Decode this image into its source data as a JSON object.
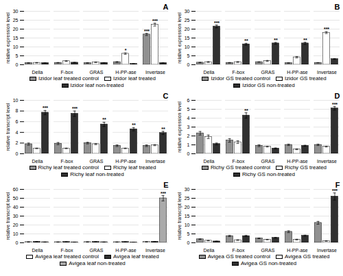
{
  "chart_data": [
    {
      "type": "bar",
      "title": "A",
      "ylabel": "relative expression level",
      "categories": [
        "Della",
        "F-box",
        "GRAS",
        "H-PP-ase",
        "Invertase"
      ],
      "ylim": [
        0,
        30
      ],
      "yticks": [
        0,
        5,
        10,
        15,
        20,
        25,
        30
      ],
      "grid": true,
      "legend": "bottom",
      "series": [
        {
          "name": "Izidor leaf treated control",
          "color": "#909090",
          "values": [
            1.0,
            1.1,
            1.0,
            1.5,
            17.0
          ],
          "errors": [
            0.1,
            0.1,
            0.1,
            0.2,
            0.6
          ],
          "asterisks": [
            null,
            null,
            null,
            null,
            "***"
          ]
        },
        {
          "name": "Izidor leaf treated",
          "color": "#ffffff",
          "values": [
            1.1,
            2.0,
            1.4,
            6.2,
            22.5
          ],
          "errors": [
            0.1,
            0.2,
            0.15,
            0.4,
            0.8
          ],
          "asterisks": [
            null,
            null,
            null,
            "*",
            "***"
          ]
        },
        {
          "name": "Izidor leaf non-treated",
          "color": "#303030",
          "values": [
            1.0,
            1.2,
            1.1,
            0.5,
            1.0
          ],
          "errors": [
            0.05,
            0.1,
            0.05,
            0.05,
            0.1
          ],
          "asterisks": [
            null,
            null,
            null,
            null,
            null
          ]
        }
      ]
    },
    {
      "type": "bar",
      "title": "B",
      "ylabel": "relative expression level",
      "categories": [
        "Della",
        "F-box",
        "GRAS",
        "H-PP-ase",
        "Invertase"
      ],
      "ylim": [
        0,
        30
      ],
      "yticks": [
        0,
        5,
        10,
        15,
        20,
        25,
        30
      ],
      "grid": true,
      "legend": "bottom",
      "series": [
        {
          "name": "Izidor GS treated control",
          "color": "#909090",
          "values": [
            1.2,
            1.1,
            1.5,
            1.0,
            1.1
          ],
          "errors": [
            0.1,
            0.1,
            0.1,
            0.05,
            0.05
          ],
          "asterisks": [
            null,
            null,
            null,
            null,
            null
          ]
        },
        {
          "name": "Izidor GS treated",
          "color": "#ffffff",
          "values": [
            1.5,
            1.5,
            2.1,
            4.2,
            18.0
          ],
          "errors": [
            0.2,
            0.2,
            0.3,
            0.4,
            0.5
          ],
          "asterisks": [
            null,
            null,
            null,
            null,
            "***"
          ]
        },
        {
          "name": "Izidor GS non-treated",
          "color": "#303030",
          "values": [
            21.5,
            11.5,
            12.0,
            12.0,
            3.2
          ],
          "errors": [
            0.8,
            0.5,
            0.5,
            0.6,
            0.2
          ],
          "asterisks": [
            "***",
            "**",
            "**",
            "**",
            null
          ]
        }
      ]
    },
    {
      "type": "bar",
      "title": "C",
      "ylabel": "relative transcript level",
      "categories": [
        "Della",
        "F-box",
        "GRAS",
        "H-PP-ase",
        "Invertase"
      ],
      "ylim": [
        0,
        10
      ],
      "yticks": [
        0,
        2,
        4,
        6,
        8,
        10
      ],
      "grid": true,
      "legend": "bottom",
      "series": [
        {
          "name": "Richy leaf treated control",
          "color": "#909090",
          "values": [
            1.8,
            1.9,
            2.0,
            1.5,
            1.5
          ],
          "errors": [
            0.2,
            0.2,
            0.15,
            0.15,
            0.15
          ],
          "asterisks": [
            null,
            null,
            null,
            null,
            null
          ]
        },
        {
          "name": "Richy leaf treated",
          "color": "#ffffff",
          "values": [
            1.0,
            1.0,
            1.8,
            1.0,
            1.6
          ],
          "errors": [
            0.05,
            0.05,
            0.1,
            0.05,
            0.1
          ],
          "asterisks": [
            null,
            null,
            null,
            null,
            null
          ]
        },
        {
          "name": "Richy leaf non-treated",
          "color": "#303030",
          "values": [
            7.7,
            7.5,
            5.5,
            4.6,
            3.9
          ],
          "errors": [
            0.4,
            0.5,
            0.4,
            0.3,
            0.3
          ],
          "asterisks": [
            "***",
            "***",
            "**",
            "**",
            "**"
          ]
        }
      ]
    },
    {
      "type": "bar",
      "title": "D",
      "ylabel": "relative expression level",
      "categories": [
        "Della",
        "F-box",
        "GRAS",
        "H-PP-ase",
        "Invertase"
      ],
      "ylim": [
        0,
        6
      ],
      "yticks": [
        0,
        1,
        2,
        3,
        4,
        5,
        6
      ],
      "grid": true,
      "legend": "bottom",
      "series": [
        {
          "name": "Richy GS treated control",
          "color": "#909090",
          "values": [
            2.3,
            1.5,
            0.9,
            1.0,
            1.0
          ],
          "errors": [
            0.2,
            0.2,
            0.1,
            0.08,
            0.08
          ],
          "asterisks": [
            null,
            null,
            null,
            null,
            null
          ]
        },
        {
          "name": "Richy GS treated",
          "color": "#ffffff",
          "values": [
            1.9,
            1.3,
            0.8,
            0.5,
            0.8
          ],
          "errors": [
            0.2,
            0.15,
            0.05,
            0.05,
            0.05
          ],
          "asterisks": [
            null,
            null,
            null,
            null,
            null
          ]
        },
        {
          "name": "Richy GS non-treated",
          "color": "#303030",
          "values": [
            1.1,
            4.3,
            0.6,
            0.9,
            5.1
          ],
          "errors": [
            0.1,
            0.3,
            0.05,
            0.05,
            0.2
          ],
          "asterisks": [
            null,
            "**",
            null,
            null,
            "***"
          ]
        }
      ]
    },
    {
      "type": "bar",
      "title": "E",
      "ylabel": "relative transcript level",
      "categories": [
        "Della",
        "F-box",
        "GRAS",
        "H-PP-ase",
        "Invertase"
      ],
      "ylim": [
        0,
        60
      ],
      "yticks": [
        0,
        10,
        20,
        30,
        40,
        50,
        60
      ],
      "grid": true,
      "legend": "bottom",
      "series": [
        {
          "name": "Avigea leaf treated control",
          "color": "#ffffff",
          "values": [
            0.9,
            0.8,
            0.9,
            0.8,
            1.1
          ],
          "errors": [
            0.05,
            0.05,
            0.05,
            0.05,
            0.1
          ],
          "asterisks": [
            null,
            null,
            null,
            null,
            null
          ]
        },
        {
          "name": "Avigea leaf treated",
          "color": "#303030",
          "values": [
            1.2,
            1.0,
            1.1,
            1.0,
            1.3
          ],
          "errors": [
            0.1,
            0.05,
            0.1,
            0.05,
            0.1
          ],
          "asterisks": [
            null,
            null,
            null,
            null,
            null
          ]
        },
        {
          "name": "Avigea leaf non-treated",
          "color": "#aaaaaa",
          "values": [
            0.8,
            0.7,
            0.8,
            0.6,
            50.0
          ],
          "errors": [
            0.05,
            0.05,
            0.05,
            0.05,
            3.0
          ],
          "asterisks": [
            null,
            null,
            null,
            null,
            "***"
          ]
        }
      ]
    },
    {
      "type": "bar",
      "title": "F",
      "ylabel": "relative transcript level",
      "categories": [
        "Della",
        "F-box",
        "GRAS",
        "H-PP-ase",
        "Invertase"
      ],
      "ylim": [
        0,
        30
      ],
      "yticks": [
        0,
        5,
        10,
        15,
        20,
        25,
        30
      ],
      "grid": true,
      "legend": "bottom",
      "series": [
        {
          "name": "Avigea GS treated control",
          "color": "#909090",
          "values": [
            2.0,
            3.8,
            2.5,
            6.2,
            11.2
          ],
          "errors": [
            0.15,
            0.3,
            0.2,
            0.5,
            0.8
          ],
          "asterisks": [
            null,
            null,
            null,
            null,
            null
          ]
        },
        {
          "name": "Avigea GS treated",
          "color": "#ffffff",
          "values": [
            1.2,
            1.5,
            1.8,
            1.8,
            1.0
          ],
          "errors": [
            0.1,
            0.15,
            0.15,
            0.2,
            0.1
          ],
          "asterisks": [
            null,
            null,
            null,
            null,
            null
          ]
        },
        {
          "name": "Avigea GS non-treated",
          "color": "#303030",
          "values": [
            0.8,
            3.8,
            2.8,
            4.0,
            26.0
          ],
          "errors": [
            0.08,
            0.3,
            0.25,
            0.3,
            2.0
          ],
          "asterisks": [
            null,
            null,
            null,
            null,
            "***"
          ]
        }
      ]
    }
  ]
}
